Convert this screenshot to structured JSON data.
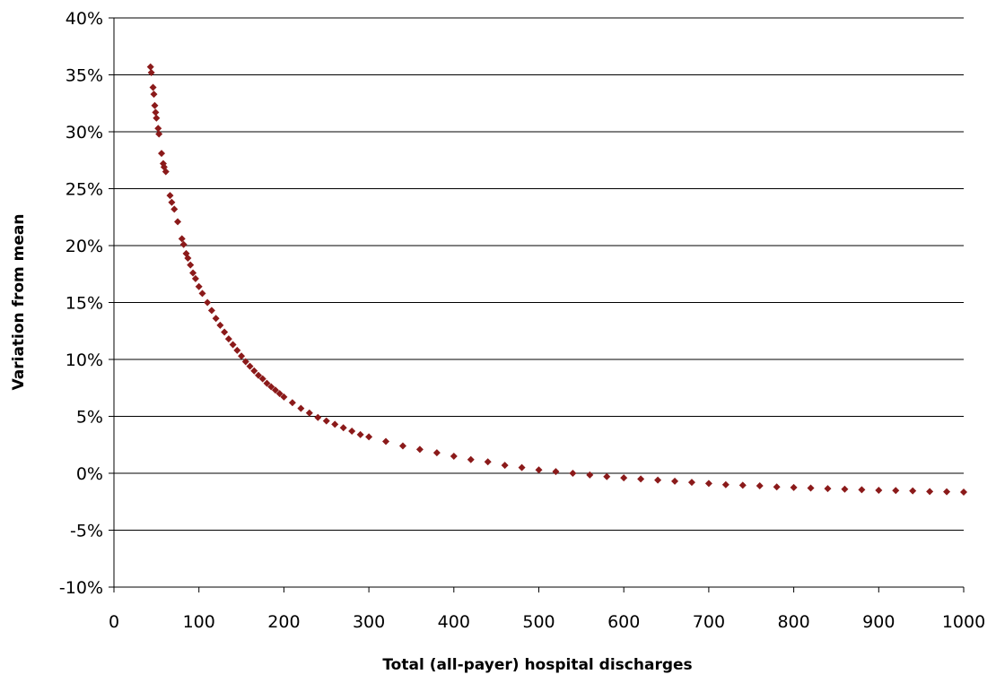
{
  "chart_data": {
    "type": "scatter",
    "title": "",
    "xlabel": "Total (all-payer) hospital discharges",
    "ylabel": "Variation from mean",
    "xlim": [
      0,
      1000
    ],
    "ylim": [
      -10,
      40
    ],
    "x_ticks": [
      "0",
      "100",
      "200",
      "300",
      "400",
      "500",
      "600",
      "700",
      "800",
      "900",
      "1000"
    ],
    "y_ticks": [
      "-10%",
      "-5%",
      "0%",
      "5%",
      "10%",
      "15%",
      "20%",
      "25%",
      "30%",
      "35%",
      "40%"
    ],
    "y_unit": "%",
    "grid": "horizontal",
    "legend": "none",
    "marker": "diamond",
    "marker_color": "#8B1A1A",
    "series": [
      {
        "points": [
          [
            43,
            35.7
          ],
          [
            44,
            35.2
          ],
          [
            46,
            33.9
          ],
          [
            47,
            33.3
          ],
          [
            48,
            32.3
          ],
          [
            49,
            31.7
          ],
          [
            50,
            31.2
          ],
          [
            52,
            30.3
          ],
          [
            53,
            29.8
          ],
          [
            56,
            28.1
          ],
          [
            58,
            27.2
          ],
          [
            59,
            26.9
          ],
          [
            61,
            26.5
          ],
          [
            66,
            24.4
          ],
          [
            68,
            23.8
          ],
          [
            71,
            23.2
          ],
          [
            75,
            22.1
          ],
          [
            80,
            20.6
          ],
          [
            82,
            20.1
          ],
          [
            85,
            19.3
          ],
          [
            87,
            18.9
          ],
          [
            90,
            18.3
          ],
          [
            93,
            17.6
          ],
          [
            96,
            17.1
          ],
          [
            100,
            16.4
          ],
          [
            104,
            15.8
          ],
          [
            110,
            15.0
          ],
          [
            115,
            14.3
          ],
          [
            120,
            13.6
          ],
          [
            125,
            13.0
          ],
          [
            130,
            12.4
          ],
          [
            135,
            11.8
          ],
          [
            140,
            11.3
          ],
          [
            145,
            10.8
          ],
          [
            150,
            10.3
          ],
          [
            155,
            9.8
          ],
          [
            160,
            9.4
          ],
          [
            165,
            9.0
          ],
          [
            170,
            8.6
          ],
          [
            175,
            8.3
          ],
          [
            180,
            7.9
          ],
          [
            185,
            7.6
          ],
          [
            190,
            7.3
          ],
          [
            195,
            7.0
          ],
          [
            200,
            6.7
          ],
          [
            210,
            6.2
          ],
          [
            220,
            5.7
          ],
          [
            230,
            5.3
          ],
          [
            240,
            4.9
          ],
          [
            250,
            4.6
          ],
          [
            260,
            4.3
          ],
          [
            270,
            4.0
          ],
          [
            280,
            3.7
          ],
          [
            290,
            3.4
          ],
          [
            300,
            3.2
          ],
          [
            320,
            2.8
          ],
          [
            340,
            2.4
          ],
          [
            360,
            2.1
          ],
          [
            380,
            1.8
          ],
          [
            400,
            1.5
          ],
          [
            420,
            1.2
          ],
          [
            440,
            1.0
          ],
          [
            460,
            0.7
          ],
          [
            480,
            0.5
          ],
          [
            500,
            0.3
          ],
          [
            520,
            0.15
          ],
          [
            540,
            0.0
          ],
          [
            560,
            -0.15
          ],
          [
            580,
            -0.3
          ],
          [
            600,
            -0.4
          ],
          [
            620,
            -0.5
          ],
          [
            640,
            -0.6
          ],
          [
            660,
            -0.7
          ],
          [
            680,
            -0.8
          ],
          [
            700,
            -0.9
          ],
          [
            720,
            -1.0
          ],
          [
            740,
            -1.05
          ],
          [
            760,
            -1.1
          ],
          [
            780,
            -1.2
          ],
          [
            800,
            -1.25
          ],
          [
            820,
            -1.3
          ],
          [
            840,
            -1.35
          ],
          [
            860,
            -1.4
          ],
          [
            880,
            -1.45
          ],
          [
            900,
            -1.5
          ],
          [
            920,
            -1.52
          ],
          [
            940,
            -1.55
          ],
          [
            960,
            -1.6
          ],
          [
            980,
            -1.62
          ],
          [
            1000,
            -1.65
          ]
        ]
      }
    ]
  }
}
